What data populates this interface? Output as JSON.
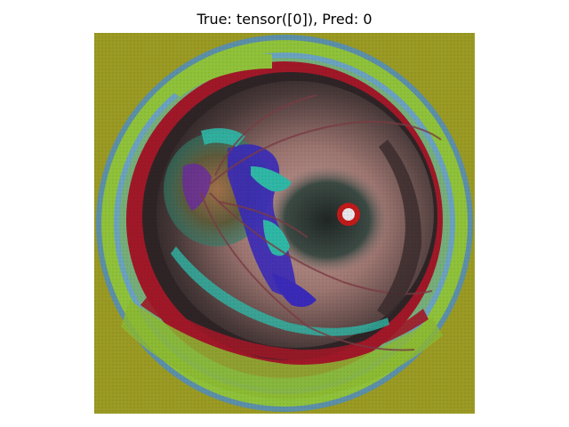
{
  "figure": {
    "title": "True: tensor([0]), Pred: 0"
  },
  "image": {
    "subject": "fundus-image-false-color",
    "colors": {
      "background": "#9a9a24",
      "outer_ring_green": "#8fc23a",
      "ring_blue": "#6aa2c0",
      "ring_red": "#a01828",
      "retina_dark": "#3a2f30",
      "retina_pink": "#b58a86",
      "optic_blue": "#3a2ab8",
      "optic_teal": "#2fb7a6",
      "macula_dark": "#262b2a"
    }
  }
}
